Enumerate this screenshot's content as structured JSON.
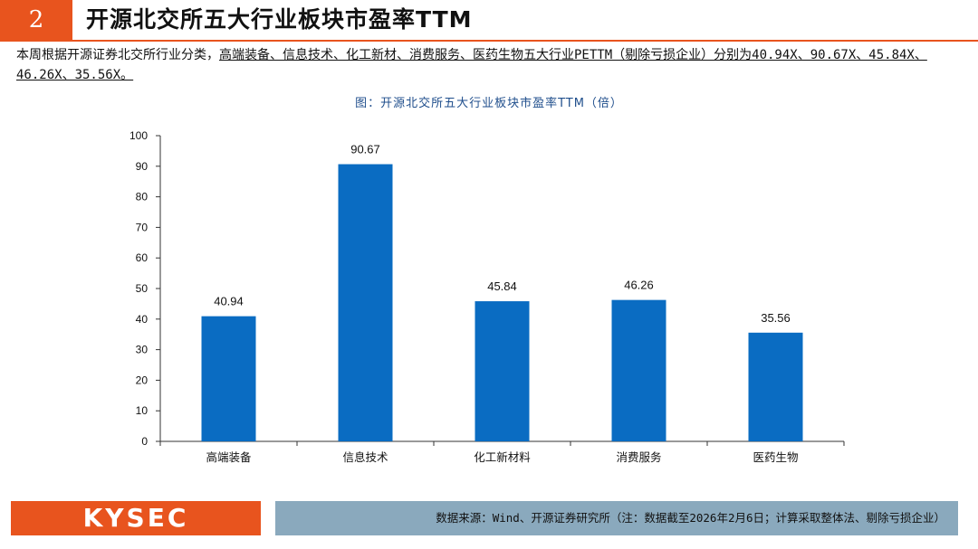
{
  "header": {
    "number": "2",
    "title": "开源北交所五大行业板块市盈率TTM"
  },
  "description": {
    "prefix": "本周根据开源证券北交所行业分类，",
    "underlined": "高端装备、信息技术、化工新材、消费服务、医药生物五大行业PETTM（剔除亏损企业）分别为40.94X、90.67X、45.84X、46.26X、35.56X。"
  },
  "chart_data": {
    "type": "bar",
    "title": "图：开源北交所五大行业板块市盈率TTM（倍）",
    "categories": [
      "高端装备",
      "信息技术",
      "化工新材料",
      "消费服务",
      "医药生物"
    ],
    "values": [
      40.94,
      90.67,
      45.84,
      46.26,
      35.56
    ],
    "data_labels": [
      "40.94",
      "90.67",
      "45.84",
      "46.26",
      "35.56"
    ],
    "ylim": [
      0,
      100
    ],
    "yticks": [
      0,
      10,
      20,
      30,
      40,
      50,
      60,
      70,
      80,
      90,
      100
    ],
    "xlabel": "",
    "ylabel": "",
    "grid": false,
    "bar_color": "#0a6cc2"
  },
  "footer": {
    "logo": "KYSEC",
    "source": "数据来源：Wind、开源证券研究所（注：数据截至2026年2月6日；计算采取整体法、剔除亏损企业）"
  }
}
